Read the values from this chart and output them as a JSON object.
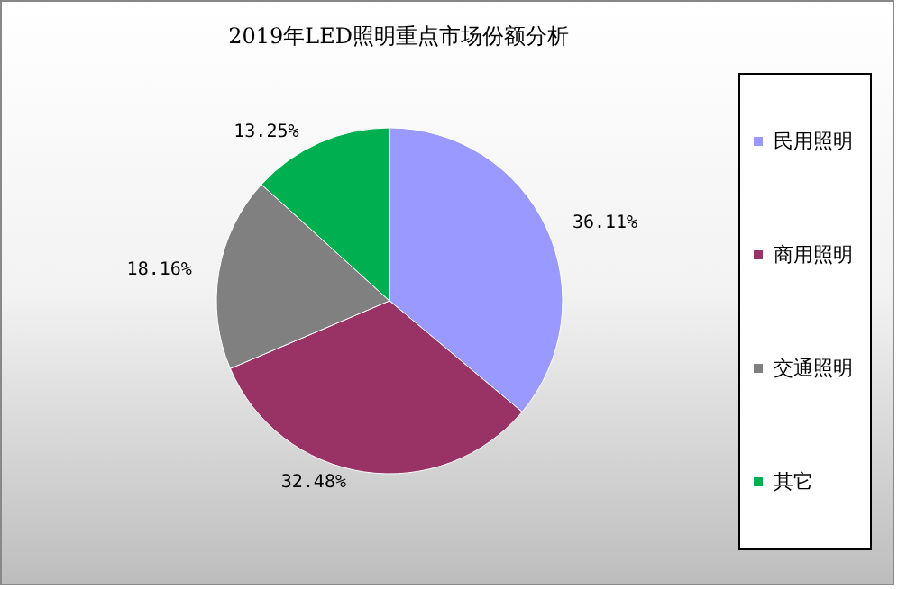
{
  "chart_data": {
    "type": "pie",
    "title": "2019年LED照明重点市场份额分析",
    "categories": [
      "民用照明",
      "商用照明",
      "交通照明",
      "其它"
    ],
    "values": [
      36.11,
      32.48,
      18.16,
      13.25
    ],
    "value_labels": [
      "36.11%",
      "32.48%",
      "18.16%",
      "13.25%"
    ],
    "colors": [
      "#9999ff",
      "#993366",
      "#808080",
      "#00b050"
    ],
    "legend": "right"
  }
}
